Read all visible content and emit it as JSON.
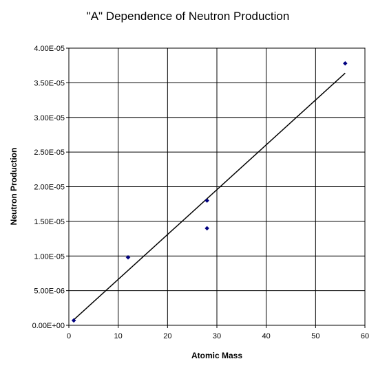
{
  "chart_data": {
    "type": "scatter",
    "title": "\"A\" Dependence of Neutron Production",
    "xlabel": "Atomic Mass",
    "ylabel": "Neutron Production",
    "xlim": [
      0,
      60
    ],
    "ylim": [
      0,
      4e-05
    ],
    "x_ticks": [
      "0",
      "10",
      "20",
      "30",
      "40",
      "50",
      "60"
    ],
    "y_ticks": [
      "0.00E+00",
      "5.00E-06",
      "1.00E-05",
      "1.50E-05",
      "2.00E-05",
      "2.50E-05",
      "3.00E-05",
      "3.50E-05",
      "4.00E-05"
    ],
    "grid": true,
    "legend": "none",
    "marker": "diamond",
    "marker_color": "#000080",
    "series": [
      {
        "x": [
          1,
          12,
          28,
          28,
          56
        ],
        "y": [
          7e-07,
          9.8e-06,
          1.4e-05,
          1.8e-05,
          3.78e-05
        ]
      }
    ],
    "trendline": {
      "type": "linear",
      "x": [
        1,
        56
      ],
      "y": [
        8e-07,
        3.64e-05
      ]
    }
  }
}
